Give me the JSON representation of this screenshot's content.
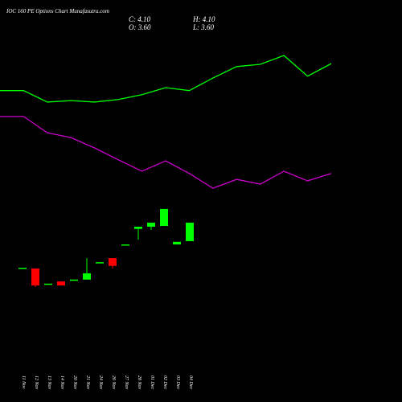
{
  "title": "IOC 160 PE Options Chart Munafasutra.com",
  "ohlc_labels": [
    "C: 4.10",
    "O: 3.60",
    "H: 4.10",
    "L: 3.60"
  ],
  "chart_data": [
    {
      "type": "candlestick",
      "ylim": [
        -0.75,
        10.12
      ],
      "categories": [
        "11 Nov",
        "12 Nov",
        "13 Nov",
        "14 Nov",
        "20 Nov",
        "21 Nov",
        "24 Nov",
        "26 Nov",
        "27 Nov",
        "28 Nov",
        "01 Dec",
        "02 Dec",
        "03 Dec",
        "04 Dec"
      ],
      "open": [
        2.88,
        2.86,
        2.45,
        2.51,
        2.56,
        2.56,
        3.03,
        3.14,
        3.51,
        3.93,
        3.99,
        4.01,
        3.51,
        3.6
      ],
      "high": [
        2.88,
        2.86,
        2.45,
        2.51,
        2.56,
        3.14,
        3.03,
        3.14,
        3.51,
        3.99,
        4.1,
        4.47,
        3.58,
        4.1
      ],
      "low": [
        2.88,
        2.36,
        2.45,
        2.4,
        2.56,
        2.56,
        3.03,
        2.86,
        3.51,
        3.64,
        3.9,
        4.01,
        3.51,
        3.6
      ],
      "close": [
        2.88,
        2.4,
        2.45,
        2.4,
        2.56,
        2.73,
        3.03,
        2.93,
        3.51,
        3.99,
        4.1,
        4.47,
        3.58,
        4.1
      ],
      "up_color": "#00ff00",
      "down_color": "#ff0000"
    },
    {
      "type": "line",
      "ylim": [
        -0.75,
        10.12
      ],
      "series": [
        {
          "color": "#00ff00",
          "values": [
            7.67,
            7.67,
            7.36,
            7.4,
            7.36,
            7.43,
            7.56,
            7.75,
            7.67,
            8.01,
            8.32,
            8.38,
            8.62,
            8.06,
            8.4
          ]
        },
        {
          "color": "#cc00cc",
          "values": [
            6.97,
            6.97,
            6.53,
            6.4,
            6.12,
            5.8,
            5.49,
            5.77,
            5.43,
            5.03,
            5.27,
            5.14,
            5.49,
            5.23,
            5.43
          ]
        }
      ]
    }
  ]
}
